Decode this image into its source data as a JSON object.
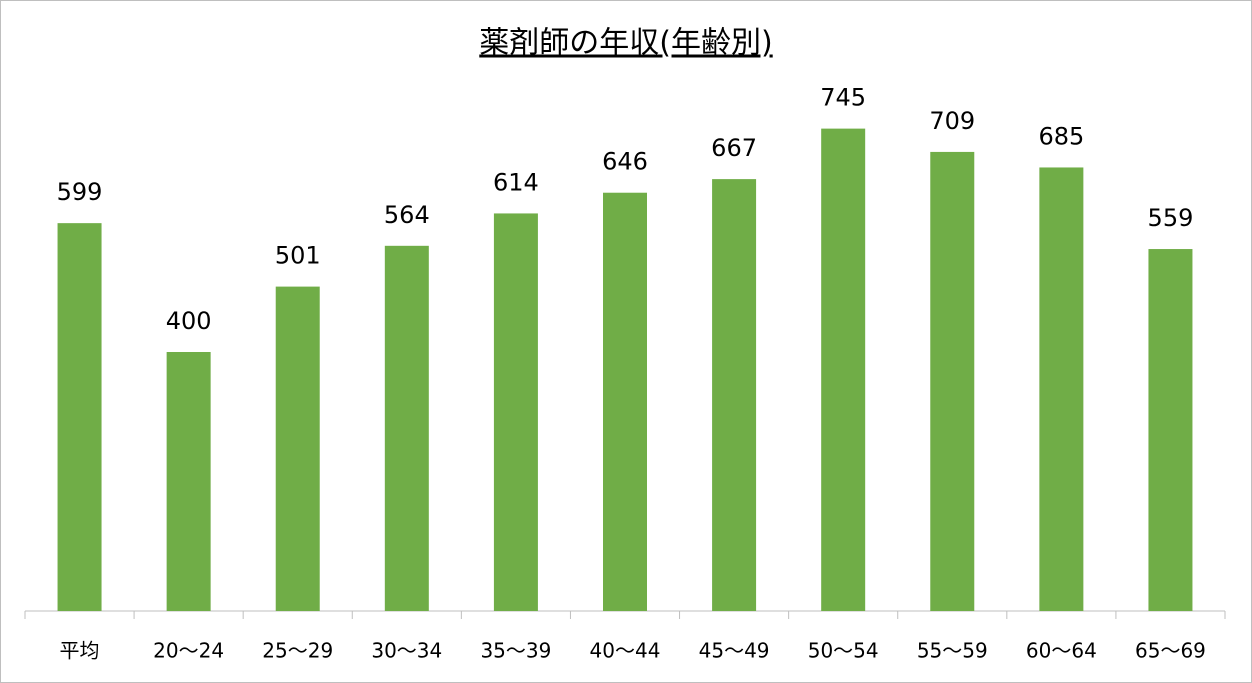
{
  "chart_data": {
    "type": "bar",
    "title": "薬剤師の年収(年齢別)",
    "categories": [
      "平均",
      "20〜24",
      "25〜29",
      "30〜34",
      "35〜39",
      "40〜44",
      "45〜49",
      "50〜54",
      "55〜59",
      "60〜64",
      "65〜69"
    ],
    "values": [
      599,
      400,
      501,
      564,
      614,
      646,
      667,
      745,
      709,
      685,
      559
    ],
    "color": "#70ad47",
    "ylim": [
      0,
      800
    ]
  }
}
